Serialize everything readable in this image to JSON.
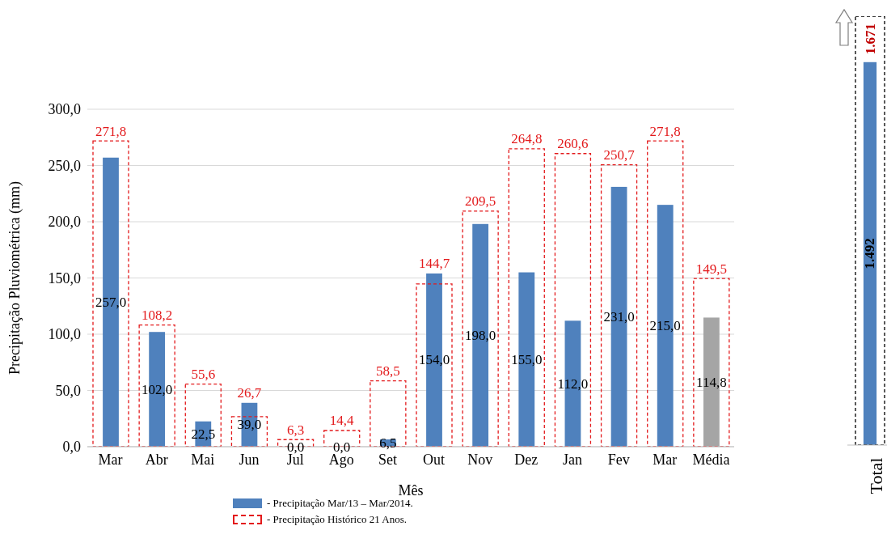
{
  "chart_data": [
    {
      "type": "bar",
      "xlabel": "Mês",
      "ylabel": "Precipitação Pluviométrica (mm)",
      "categories": [
        "Mar",
        "Abr",
        "Mai",
        "Jun",
        "Jul",
        "Ago",
        "Set",
        "Out",
        "Nov",
        "Dez",
        "Jan",
        "Fev",
        "Mar",
        "Média"
      ],
      "series": [
        {
          "name": "- Precipitação Mar/13 – Mar/2014.",
          "color": "#4f81bd",
          "colors": [
            "#4f81bd",
            "#4f81bd",
            "#4f81bd",
            "#4f81bd",
            "#4f81bd",
            "#4f81bd",
            "#4f81bd",
            "#4f81bd",
            "#4f81bd",
            "#4f81bd",
            "#4f81bd",
            "#4f81bd",
            "#4f81bd",
            "#a5a5a5"
          ],
          "values": [
            257.0,
            102.0,
            22.5,
            39.0,
            0.0,
            0.0,
            6.5,
            154.0,
            198.0,
            155.0,
            112.0,
            231.0,
            215.0,
            114.8
          ],
          "value_labels": [
            "257,0",
            "102,0",
            "22,5",
            "39,0",
            "0,0",
            "0,0",
            "6,5",
            "154,0",
            "198,0",
            "155,0",
            "112,0",
            "231,0",
            "215,0",
            "114,8"
          ]
        },
        {
          "name": "- Precipitação Histórico 21 Anos.",
          "color": "#e31a1c",
          "line_style": "dashed",
          "values": [
            271.8,
            108.2,
            55.6,
            26.7,
            6.3,
            14.4,
            58.5,
            144.7,
            209.5,
            264.8,
            260.6,
            250.7,
            271.8,
            149.5
          ],
          "value_labels": [
            "271,8",
            "108,2",
            "55,6",
            "26,7",
            "6,3",
            "14,4",
            "58,5",
            "144,7",
            "209,5",
            "264,8",
            "260,6",
            "250,7",
            "271,8",
            "149,5"
          ]
        }
      ],
      "ylim": [
        0,
        300
      ],
      "yticks": [
        {
          "value": 0,
          "label": "0,0"
        },
        {
          "value": 50,
          "label": "50,0"
        },
        {
          "value": 100,
          "label": "100,0"
        },
        {
          "value": 150,
          "label": "150,0"
        },
        {
          "value": 200,
          "label": "200,0"
        },
        {
          "value": 250,
          "label": "250,0"
        },
        {
          "value": 300,
          "label": "300,0"
        }
      ],
      "grid": "y",
      "legend": "bottom"
    },
    {
      "type": "bar",
      "categories": [
        "Total"
      ],
      "series": [
        {
          "color": "#4f81bd",
          "values": [
            1492
          ],
          "value_labels": [
            "1.492"
          ]
        },
        {
          "color": "#000000",
          "line_style": "dashed",
          "values": [
            1671
          ],
          "value_labels": [
            "1.671"
          ]
        }
      ]
    }
  ]
}
